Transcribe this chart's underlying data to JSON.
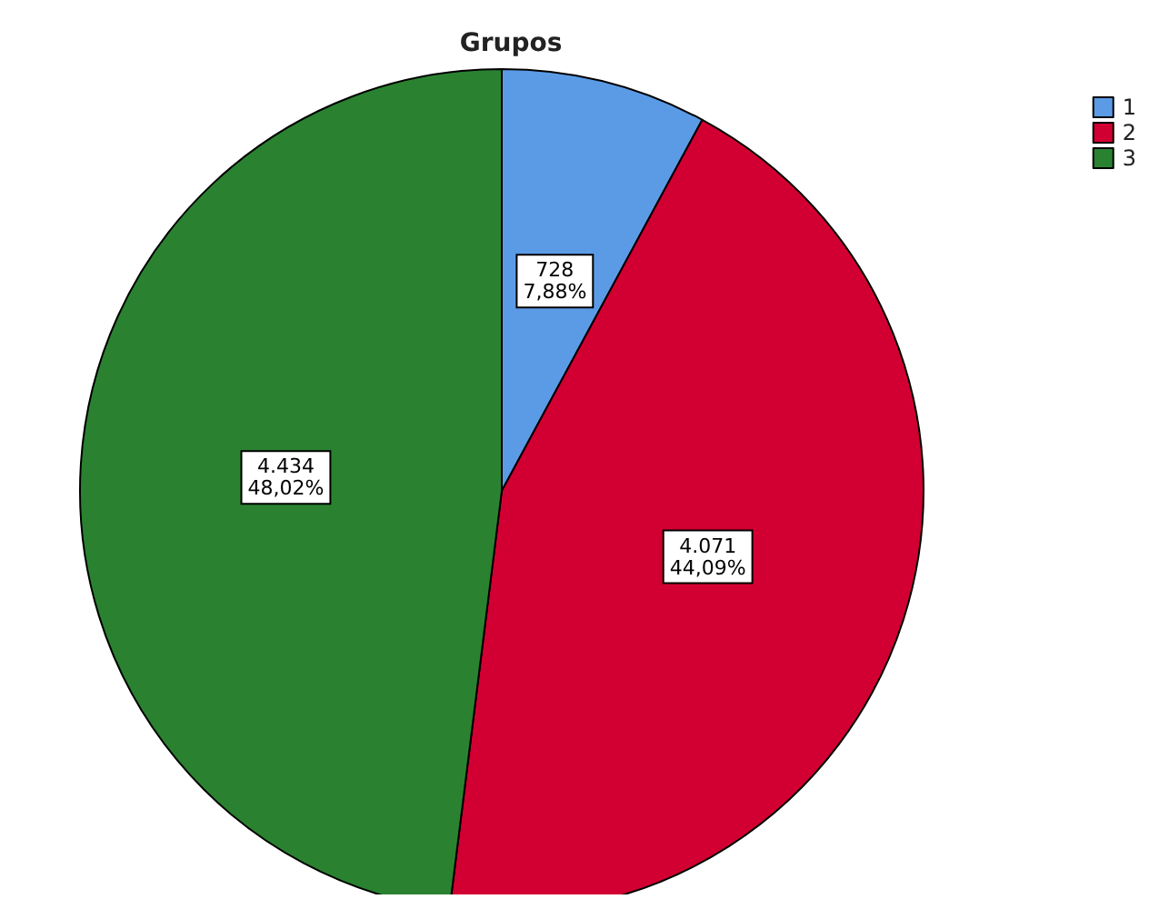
{
  "chart_data": {
    "type": "pie",
    "title": "Grupos",
    "categories": [
      "1",
      "2",
      "3"
    ],
    "values": [
      728,
      4071,
      4434
    ],
    "value_labels": [
      "728\n7,88%",
      "4.071\n44,09%",
      "4.434\n48,02%"
    ],
    "colors": [
      "#5b9be6",
      "#d20032",
      "#2a8230"
    ],
    "legend": "top right"
  }
}
